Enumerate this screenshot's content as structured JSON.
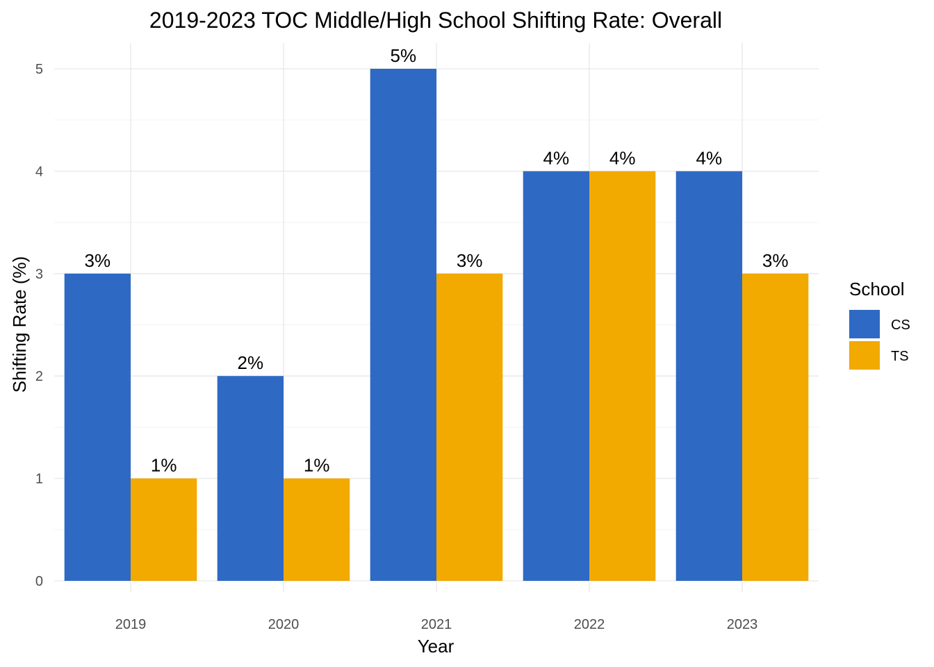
{
  "chart_data": {
    "type": "bar",
    "title": "2019-2023 TOC Middle/High School Shifting Rate: Overall",
    "xlabel": "Year",
    "ylabel": "Shifting Rate (%)",
    "categories": [
      "2019",
      "2020",
      "2021",
      "2022",
      "2023"
    ],
    "series": [
      {
        "name": "CS",
        "values": [
          3,
          2,
          5,
          4,
          4
        ],
        "labels": [
          "3%",
          "2%",
          "5%",
          "4%",
          "4%"
        ],
        "color": "#2e69c4"
      },
      {
        "name": "TS",
        "values": [
          1,
          1,
          3,
          4,
          3
        ],
        "labels": [
          "1%",
          "1%",
          "3%",
          "4%",
          "3%"
        ],
        "color": "#f2a900"
      }
    ],
    "yticks": [
      "0",
      "1",
      "2",
      "3",
      "4",
      "5"
    ],
    "ylim": [
      0,
      5.25
    ],
    "grid": true,
    "legend": {
      "title": "School",
      "position": "right"
    }
  }
}
